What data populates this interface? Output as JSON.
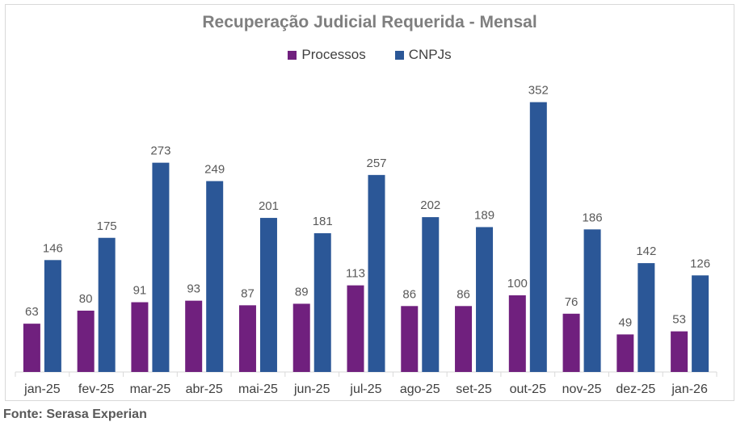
{
  "chart_data": {
    "type": "bar",
    "title": "Recuperação Judicial Requerida - Mensal",
    "categories": [
      "jan-25",
      "fev-25",
      "mar-25",
      "abr-25",
      "mai-25",
      "jun-25",
      "jul-25",
      "ago-25",
      "set-25",
      "out-25",
      "nov-25",
      "dez-25",
      "jan-26"
    ],
    "series": [
      {
        "name": "Processos",
        "color": "#70207e",
        "values": [
          63,
          80,
          91,
          93,
          87,
          89,
          113,
          86,
          86,
          100,
          76,
          49,
          53
        ]
      },
      {
        "name": "CNPJs",
        "color": "#2b5797",
        "values": [
          146,
          175,
          273,
          249,
          201,
          181,
          257,
          202,
          189,
          352,
          186,
          142,
          126
        ]
      }
    ],
    "ylim": [
      0,
      380
    ],
    "grid": false,
    "legend_position": "top"
  },
  "source": "Fonte: Serasa Experian"
}
